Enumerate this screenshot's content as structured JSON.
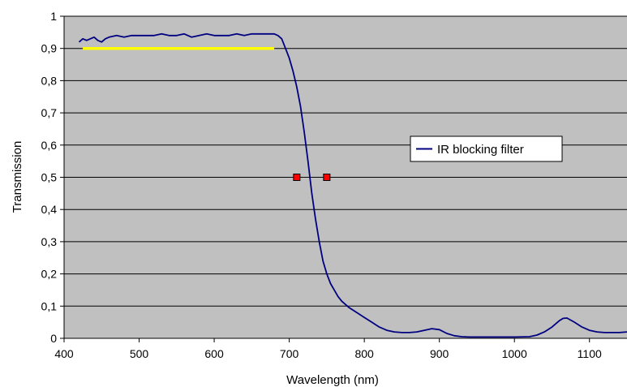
{
  "chart_data": {
    "type": "line",
    "xlabel": "Wavelength (nm)",
    "ylabel": "Transmission",
    "xlim": [
      400,
      1150
    ],
    "ylim": [
      0,
      1
    ],
    "x_ticks": [
      400,
      500,
      600,
      700,
      800,
      900,
      1000,
      1100
    ],
    "x_tick_labels": [
      "400",
      "500",
      "600",
      "700",
      "800",
      "900",
      "1000",
      "1100"
    ],
    "y_ticks": [
      0,
      0.1,
      0.2,
      0.3,
      0.4,
      0.5,
      0.6,
      0.7,
      0.8,
      0.9,
      1
    ],
    "y_tick_labels": [
      "0",
      "0,1",
      "0,2",
      "0,3",
      "0,4",
      "0,5",
      "0,6",
      "0,7",
      "0,8",
      "0,9",
      "1"
    ],
    "grid": "horizontal",
    "plot_background": "#c0c0c0",
    "legend_position": "right",
    "series": [
      {
        "name": "IR blocking filter",
        "color": "#000080",
        "x": [
          420,
          425,
          430,
          435,
          440,
          445,
          450,
          455,
          460,
          470,
          480,
          490,
          500,
          510,
          520,
          530,
          540,
          550,
          560,
          570,
          580,
          590,
          600,
          610,
          620,
          630,
          640,
          650,
          660,
          670,
          680,
          685,
          690,
          695,
          700,
          705,
          710,
          715,
          720,
          725,
          730,
          735,
          740,
          745,
          750,
          755,
          760,
          765,
          770,
          780,
          790,
          800,
          810,
          820,
          830,
          840,
          850,
          860,
          870,
          880,
          890,
          900,
          910,
          920,
          930,
          940,
          950,
          1000,
          1020,
          1030,
          1040,
          1050,
          1060,
          1065,
          1070,
          1080,
          1090,
          1100,
          1110,
          1120,
          1130,
          1140,
          1150
        ],
        "y": [
          0.92,
          0.93,
          0.925,
          0.93,
          0.935,
          0.925,
          0.92,
          0.93,
          0.935,
          0.94,
          0.935,
          0.94,
          0.94,
          0.94,
          0.94,
          0.945,
          0.94,
          0.94,
          0.945,
          0.935,
          0.94,
          0.945,
          0.94,
          0.94,
          0.94,
          0.945,
          0.94,
          0.945,
          0.945,
          0.945,
          0.945,
          0.94,
          0.93,
          0.9,
          0.87,
          0.83,
          0.78,
          0.72,
          0.64,
          0.55,
          0.45,
          0.37,
          0.3,
          0.24,
          0.2,
          0.17,
          0.15,
          0.13,
          0.115,
          0.095,
          0.08,
          0.065,
          0.05,
          0.035,
          0.025,
          0.02,
          0.018,
          0.018,
          0.02,
          0.025,
          0.03,
          0.027,
          0.015,
          0.008,
          0.005,
          0.004,
          0.004,
          0.004,
          0.005,
          0.01,
          0.02,
          0.035,
          0.055,
          0.062,
          0.063,
          0.05,
          0.035,
          0.025,
          0.02,
          0.018,
          0.018,
          0.018,
          0.02
        ]
      },
      {
        "name": "",
        "color": "#ffff00",
        "x": [
          425,
          680
        ],
        "y": [
          0.9,
          0.9
        ]
      }
    ],
    "markers": {
      "color": "#ff0000",
      "points": [
        {
          "x": 710,
          "y": 0.5
        },
        {
          "x": 750,
          "y": 0.5
        }
      ]
    }
  }
}
